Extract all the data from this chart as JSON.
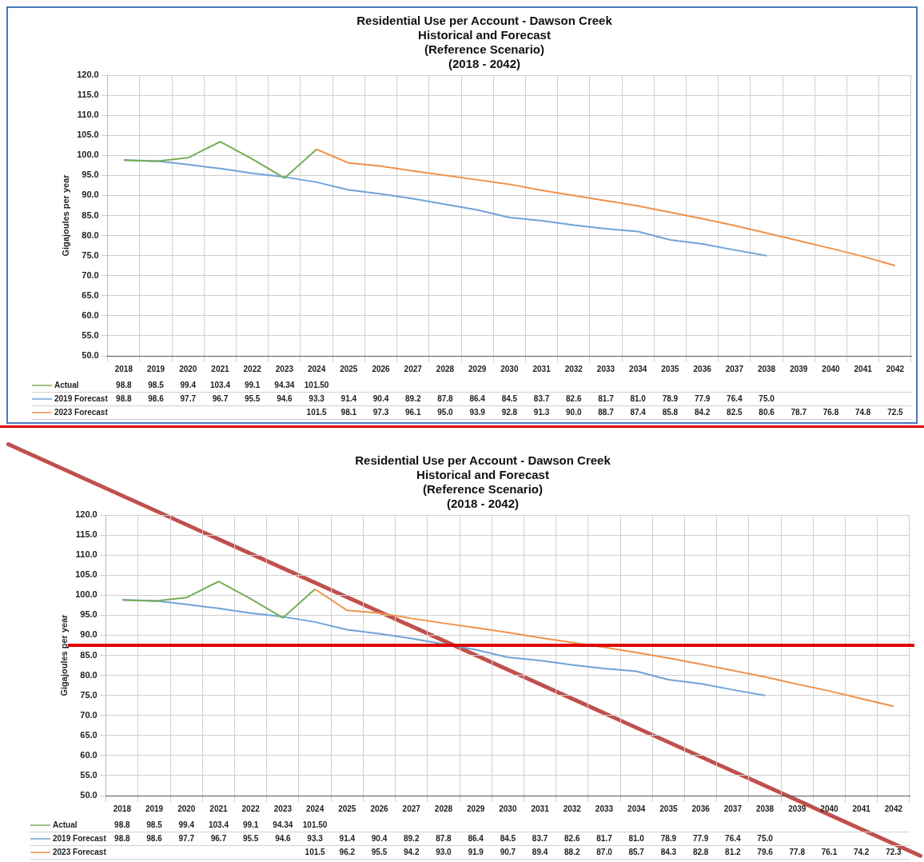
{
  "chart_data": [
    {
      "type": "line",
      "title": "Residential Use per Account - Dawson Creek\nHistorical and Forecast\n(Reference Scenario)\n(2018 - 2042)",
      "ylabel": "Gigajoules per year",
      "categories": [
        "2018",
        "2019",
        "2020",
        "2021",
        "2022",
        "2023",
        "2024",
        "2025",
        "2026",
        "2027",
        "2028",
        "2029",
        "2030",
        "2031",
        "2032",
        "2033",
        "2034",
        "2035",
        "2036",
        "2037",
        "2038",
        "2039",
        "2040",
        "2041",
        "2042"
      ],
      "series": [
        {
          "name": "Actual",
          "color": "#77ad55",
          "values": [
            98.8,
            98.5,
            99.4,
            103.4,
            99.1,
            94.34,
            101.5,
            null,
            null,
            null,
            null,
            null,
            null,
            null,
            null,
            null,
            null,
            null,
            null,
            null,
            null,
            null,
            null,
            null,
            null
          ],
          "value_labels": [
            "98.8",
            "98.5",
            "99.4",
            "103.4",
            "99.1",
            "94.34",
            "101.50",
            null,
            null,
            null,
            null,
            null,
            null,
            null,
            null,
            null,
            null,
            null,
            null,
            null,
            null,
            null,
            null,
            null,
            null
          ]
        },
        {
          "name": "2019 Forecast",
          "color": "#6fa3d8",
          "values": [
            98.8,
            98.6,
            97.7,
            96.7,
            95.5,
            94.6,
            93.3,
            91.4,
            90.4,
            89.2,
            87.8,
            86.4,
            84.5,
            83.7,
            82.6,
            81.7,
            81.0,
            78.9,
            77.9,
            76.4,
            75.0,
            null,
            null,
            null,
            null
          ],
          "value_labels": [
            "98.8",
            "98.6",
            "97.7",
            "96.7",
            "95.5",
            "94.6",
            "93.3",
            "91.4",
            "90.4",
            "89.2",
            "87.8",
            "86.4",
            "84.5",
            "83.7",
            "82.6",
            "81.7",
            "81.0",
            "78.9",
            "77.9",
            "76.4",
            "75.0",
            null,
            null,
            null,
            null
          ]
        },
        {
          "name": "2023 Forecast",
          "color": "#f0914a",
          "values": [
            null,
            null,
            null,
            null,
            null,
            null,
            101.5,
            98.1,
            97.3,
            96.1,
            95.0,
            93.9,
            92.8,
            91.3,
            90.0,
            88.7,
            87.4,
            85.8,
            84.2,
            82.5,
            80.6,
            78.7,
            76.8,
            74.8,
            72.5
          ],
          "value_labels": [
            null,
            null,
            null,
            null,
            null,
            null,
            "101.5",
            "98.1",
            "97.3",
            "96.1",
            "95.0",
            "93.9",
            "92.8",
            "91.3",
            "90.0",
            "88.7",
            "87.4",
            "85.8",
            "84.2",
            "82.5",
            "80.6",
            "78.7",
            "76.8",
            "74.8",
            "72.5"
          ]
        }
      ],
      "ylim": [
        50,
        120
      ],
      "yticks": [
        {
          "value": 50,
          "label": "50.0"
        },
        {
          "value": 55,
          "label": "55.0"
        },
        {
          "value": 60,
          "label": "60.0"
        },
        {
          "value": 65,
          "label": "65.0"
        },
        {
          "value": 70,
          "label": "70.0"
        },
        {
          "value": 75,
          "label": "75.0"
        },
        {
          "value": 80,
          "label": "80.0"
        },
        {
          "value": 85,
          "label": "85.0"
        },
        {
          "value": 90,
          "label": "90.0"
        },
        {
          "value": 95,
          "label": "95.0"
        },
        {
          "value": 100,
          "label": "100.0"
        },
        {
          "value": 105,
          "label": "105.0"
        },
        {
          "value": 110,
          "label": "110.0"
        },
        {
          "value": 115,
          "label": "115.0"
        },
        {
          "value": 120,
          "label": "120.0"
        }
      ],
      "grid": true,
      "legend": "bottom",
      "marker": "none"
    },
    {
      "type": "line",
      "title": "Residential Use per Account - Dawson Creek\nHistorical and Forecast\n(Reference Scenario)\n(2018 - 2042)",
      "ylabel": "Gigajoules per year",
      "categories": [
        "2018",
        "2019",
        "2020",
        "2021",
        "2022",
        "2023",
        "2024",
        "2025",
        "2026",
        "2027",
        "2028",
        "2029",
        "2030",
        "2031",
        "2032",
        "2033",
        "2034",
        "2035",
        "2036",
        "2037",
        "2038",
        "2039",
        "2040",
        "2041",
        "2042"
      ],
      "series": [
        {
          "name": "Actual",
          "color": "#77ad55",
          "values": [
            98.8,
            98.5,
            99.4,
            103.4,
            99.1,
            94.34,
            101.5,
            null,
            null,
            null,
            null,
            null,
            null,
            null,
            null,
            null,
            null,
            null,
            null,
            null,
            null,
            null,
            null,
            null,
            null
          ],
          "value_labels": [
            "98.8",
            "98.5",
            "99.4",
            "103.4",
            "99.1",
            "94.34",
            "101.50",
            null,
            null,
            null,
            null,
            null,
            null,
            null,
            null,
            null,
            null,
            null,
            null,
            null,
            null,
            null,
            null,
            null,
            null
          ]
        },
        {
          "name": "2019 Forecast",
          "color": "#6fa3d8",
          "values": [
            98.8,
            98.6,
            97.7,
            96.7,
            95.5,
            94.6,
            93.3,
            91.4,
            90.4,
            89.2,
            87.8,
            86.4,
            84.5,
            83.7,
            82.6,
            81.7,
            81.0,
            78.9,
            77.9,
            76.4,
            75.0,
            null,
            null,
            null,
            null
          ],
          "value_labels": [
            "98.8",
            "98.6",
            "97.7",
            "96.7",
            "95.5",
            "94.6",
            "93.3",
            "91.4",
            "90.4",
            "89.2",
            "87.8",
            "86.4",
            "84.5",
            "83.7",
            "82.6",
            "81.7",
            "81.0",
            "78.9",
            "77.9",
            "76.4",
            "75.0",
            null,
            null,
            null,
            null
          ]
        },
        {
          "name": "2023 Forecast",
          "color": "#f0914a",
          "values": [
            null,
            null,
            null,
            null,
            null,
            null,
            101.5,
            96.2,
            95.5,
            94.2,
            93.0,
            91.9,
            90.7,
            89.4,
            88.2,
            87.0,
            85.7,
            84.3,
            82.8,
            81.2,
            79.6,
            77.8,
            76.1,
            74.2,
            72.3
          ],
          "value_labels": [
            null,
            null,
            null,
            null,
            null,
            null,
            "101.5",
            "96.2",
            "95.5",
            "94.2",
            "93.0",
            "91.9",
            "90.7",
            "89.4",
            "88.2",
            "87.0",
            "85.7",
            "84.3",
            "82.8",
            "81.2",
            "79.6",
            "77.8",
            "76.1",
            "74.2",
            "72.3"
          ]
        }
      ],
      "ylim": [
        50,
        120
      ],
      "yticks": [
        {
          "value": 50,
          "label": "50.0"
        },
        {
          "value": 55,
          "label": "55.0"
        },
        {
          "value": 60,
          "label": "60.0"
        },
        {
          "value": 65,
          "label": "65.0"
        },
        {
          "value": 70,
          "label": "70.0"
        },
        {
          "value": 75,
          "label": "75.0"
        },
        {
          "value": 80,
          "label": "80.0"
        },
        {
          "value": 85,
          "label": "85.0"
        },
        {
          "value": 90,
          "label": "90.0"
        },
        {
          "value": 95,
          "label": "95.0"
        },
        {
          "value": 100,
          "label": "100.0"
        },
        {
          "value": 105,
          "label": "105.0"
        },
        {
          "value": 110,
          "label": "110.0"
        },
        {
          "value": 115,
          "label": "115.0"
        },
        {
          "value": 120,
          "label": "120.0"
        }
      ],
      "grid": true,
      "legend": "bottom",
      "marker": "none",
      "ref_lines": [
        {
          "axis": "y",
          "value": 87.5,
          "color": "#e00000"
        }
      ]
    }
  ]
}
